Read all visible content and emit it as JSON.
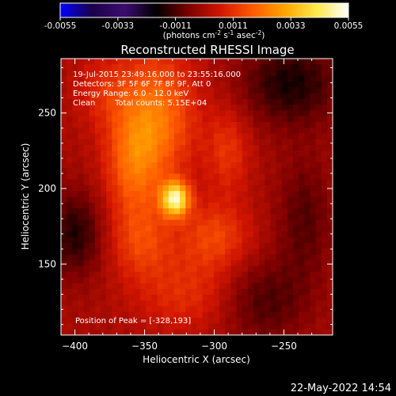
{
  "chart_data": {
    "type": "heatmap",
    "title": "Reconstructed RHESSI Image",
    "xlabel": "Heliocentric X (arcsec)",
    "ylabel": "Heliocentric Y (arcsec)",
    "xlim": [
      -410,
      -215
    ],
    "ylim": [
      103,
      286
    ],
    "xticks": [
      -400,
      -350,
      -300,
      -250
    ],
    "yticks": [
      150,
      200,
      250
    ],
    "colorbar": {
      "min": -0.0055,
      "max": 0.0055,
      "ticks": [
        "-0.0055",
        "-0.0033",
        "-0.0011",
        "0.0011",
        "0.0033",
        "0.0055"
      ],
      "unit_label": "(photons cm",
      "unit_sup1": "-2",
      "unit_mid": " s",
      "unit_sup2": "-1",
      "unit_mid2": " asec",
      "unit_sup3": "-2",
      "unit_end": ")",
      "colors": [
        "#0000ff",
        "#1a004a",
        "#3c0c70",
        "#000000",
        "#7a0000",
        "#d21500",
        "#ff5a00",
        "#ffa400",
        "#ffe94a",
        "#ffffff"
      ]
    },
    "peak": {
      "x": -328,
      "y": 193,
      "value": 0.0055
    },
    "sources": [
      {
        "x": -328,
        "y": 193,
        "sx": 7,
        "sy": 8,
        "amp": 0.0046
      },
      {
        "x": -342,
        "y": 248,
        "sx": 20,
        "sy": 30,
        "amp": 0.0022
      },
      {
        "x": -358,
        "y": 215,
        "sx": 14,
        "sy": 25,
        "amp": 0.0016
      },
      {
        "x": -300,
        "y": 168,
        "sx": 18,
        "sy": 16,
        "amp": 0.0014
      },
      {
        "x": -352,
        "y": 165,
        "sx": 16,
        "sy": 18,
        "amp": 0.0013
      },
      {
        "x": -290,
        "y": 225,
        "sx": 11,
        "sy": 20,
        "amp": 0.0011
      },
      {
        "x": -320,
        "y": 130,
        "sx": 25,
        "sy": 18,
        "amp": 0.001
      },
      {
        "x": -380,
        "y": 265,
        "sx": 14,
        "sy": 16,
        "amp": 0.0008
      },
      {
        "x": -245,
        "y": 270,
        "sx": 25,
        "sy": 20,
        "amp": -0.0016
      },
      {
        "x": -400,
        "y": 170,
        "sx": 14,
        "sy": 20,
        "amp": -0.0015
      },
      {
        "x": -265,
        "y": 125,
        "sx": 22,
        "sy": 20,
        "amp": -0.0011
      },
      {
        "x": -235,
        "y": 180,
        "sx": 14,
        "sy": 30,
        "amp": -0.001
      }
    ]
  },
  "info": {
    "time_range": "19-Jul-2015 23:49:16.000 to 23:55:16.000",
    "detectors": "Detectors: 3F 5F 6F 7F 8F 9F, Att 0",
    "energy": "Energy Range: 6.0 - 12.0 keV",
    "method": "Clean",
    "counts": "Total counts: 5.15E+04",
    "peak_label": "Position of Peak = [-328,193]"
  },
  "footer": {
    "date": "22-May-2022 14:54"
  }
}
